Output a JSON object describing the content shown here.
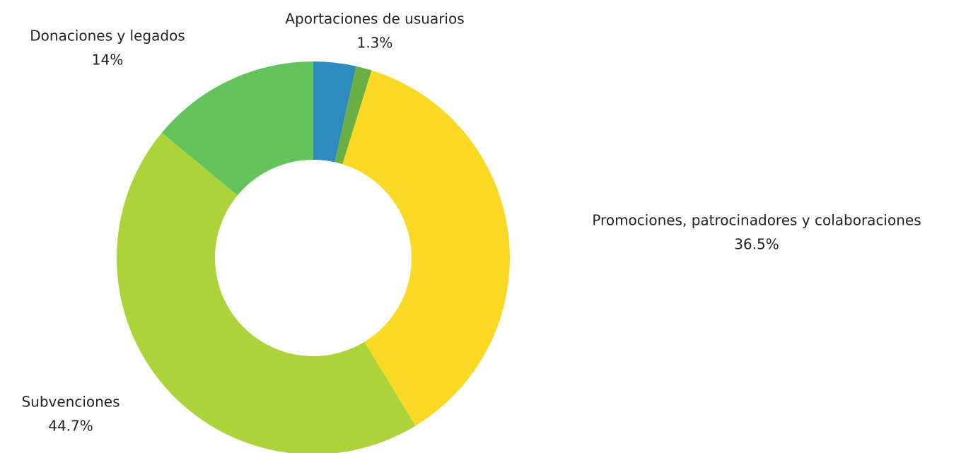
{
  "chart_data": {
    "type": "donut",
    "categories": [
      null,
      "Aportaciones de usuarios",
      "Promociones, patrocinadores y colaboraciones",
      "Subvenciones",
      "Donaciones y legados"
    ],
    "values": [
      3.5,
      1.3,
      36.5,
      44.7,
      14
    ],
    "value_labels": [
      null,
      "1.3%",
      "36.5%",
      "44.7%",
      "14%"
    ],
    "colors": [
      "#2e8bc0",
      "#6aaf45",
      "#f9d923",
      "#acd33a",
      "#63c45d"
    ]
  }
}
